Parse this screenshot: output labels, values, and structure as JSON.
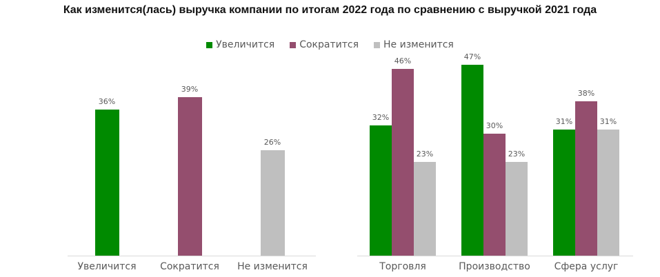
{
  "title": "Как изменится(лась) выручка компании по итогам 2022 года по сравнению с выручкой 2021 года",
  "legend": [
    {
      "label": "Увеличится",
      "color": "#008a00"
    },
    {
      "label": "Сократится",
      "color": "#944e6e"
    },
    {
      "label": "Не изменится",
      "color": "#bfbfbf"
    }
  ],
  "chart_data": [
    {
      "type": "bar",
      "title": "",
      "categories": [
        "Увеличится",
        "Сократится",
        "Не изменится"
      ],
      "values": [
        36,
        39,
        26
      ],
      "labels": [
        "36%",
        "39%",
        "26%"
      ],
      "colors": [
        "#008a00",
        "#944e6e",
        "#bfbfbf"
      ],
      "xlabel": "",
      "ylabel": "",
      "ylim": [
        0,
        45
      ],
      "grid": false
    },
    {
      "type": "bar",
      "title": "",
      "categories": [
        "Торговля",
        "Производство",
        "Сфера услуг"
      ],
      "series": [
        {
          "name": "Увеличится",
          "color": "#008a00",
          "values": [
            32,
            47,
            31
          ],
          "labels": [
            "32%",
            "47%",
            "31%"
          ]
        },
        {
          "name": "Сократится",
          "color": "#944e6e",
          "values": [
            46,
            30,
            38
          ],
          "labels": [
            "46%",
            "30%",
            "38%"
          ]
        },
        {
          "name": "Не изменится",
          "color": "#bfbfbf",
          "values": [
            23,
            23,
            31
          ],
          "labels": [
            "23%",
            "23%",
            "31%"
          ]
        }
      ],
      "xlabel": "",
      "ylabel": "",
      "ylim": [
        0,
        50
      ],
      "grid": false,
      "legend_position": "top"
    }
  ]
}
